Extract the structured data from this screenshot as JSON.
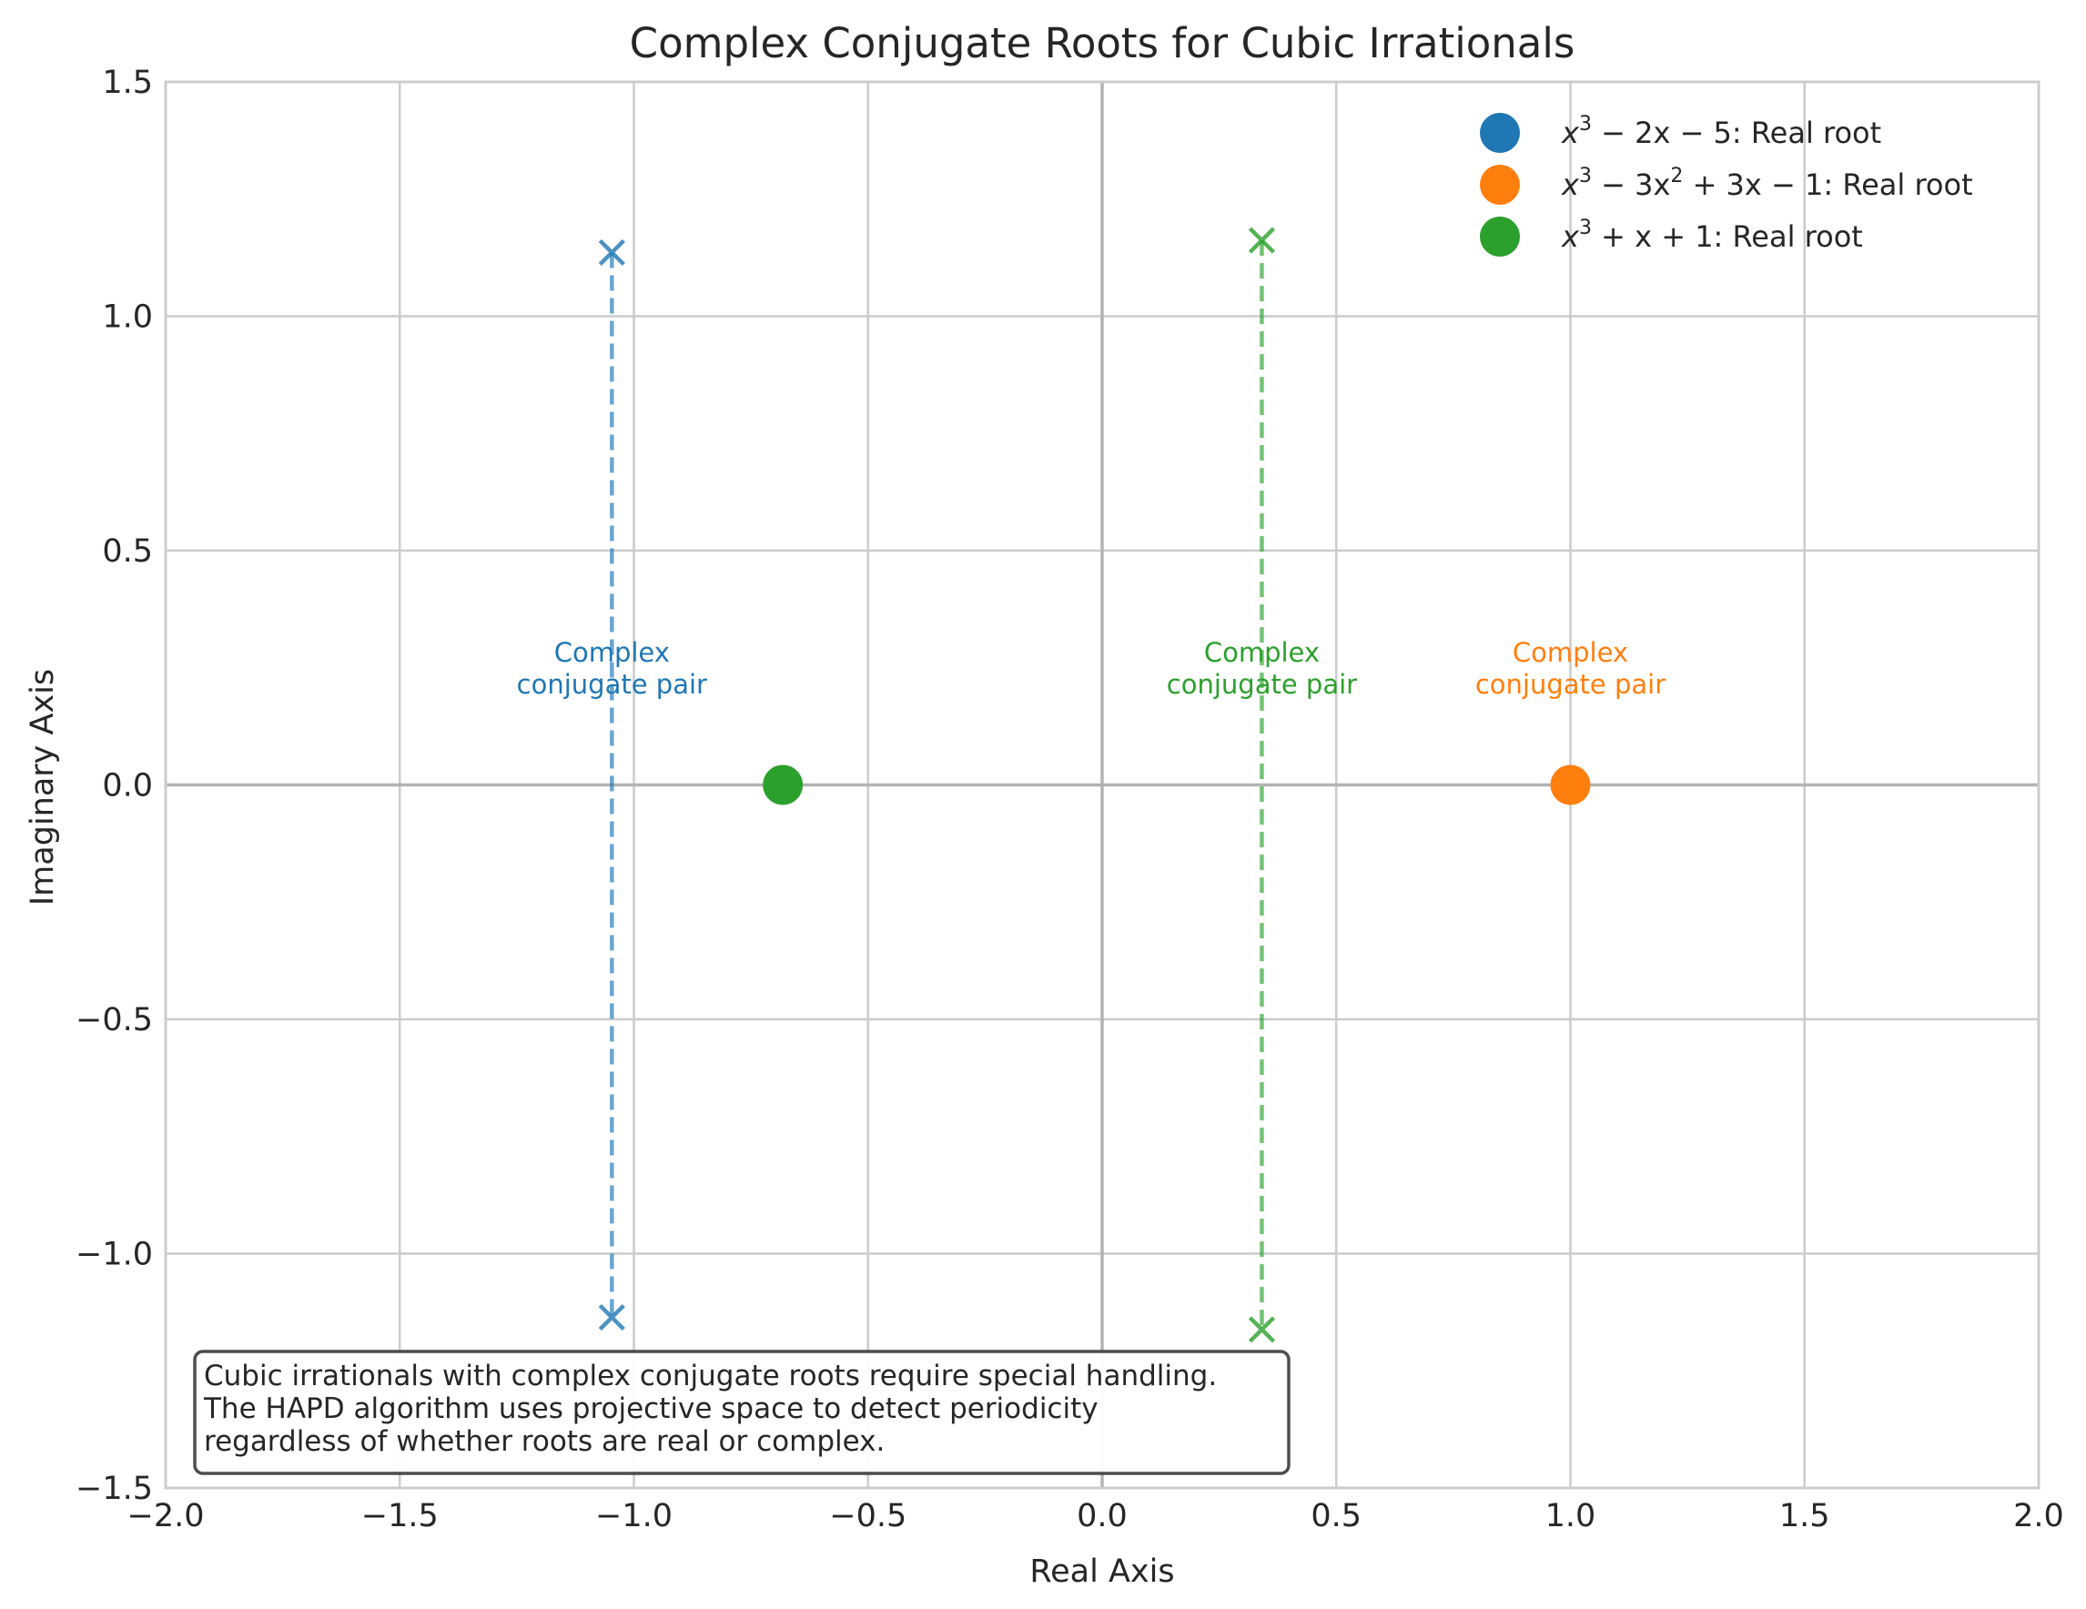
{
  "chart_data": {
    "type": "scatter",
    "title": "Complex Conjugate Roots for Cubic Irrationals",
    "xlabel": "Real Axis",
    "ylabel": "Imaginary Axis",
    "xlim": [
      -2.0,
      2.0
    ],
    "ylim": [
      -1.5,
      1.5
    ],
    "grid": true,
    "legend_position": "top-right",
    "x_ticks": [
      -2.0,
      -1.5,
      -1.0,
      -0.5,
      0.0,
      0.5,
      1.0,
      1.5,
      2.0
    ],
    "y_ticks": [
      -1.5,
      -1.0,
      -0.5,
      0.0,
      0.5,
      1.0,
      1.5
    ],
    "x_tick_labels": [
      "−2.0",
      "−1.5",
      "−1.0",
      "−0.5",
      "0.0",
      "0.5",
      "1.0",
      "1.5",
      "2.0"
    ],
    "y_tick_labels": [
      "−1.5",
      "−1.0",
      "−0.5",
      "0.0",
      "0.5",
      "1.0",
      "1.5"
    ],
    "series": [
      {
        "legend_base": "x",
        "legend_exp": "3",
        "legend_rest": " − 2x − 5: Real root",
        "color": "#1f77b4",
        "real_root": null,
        "complex_pair": {
          "re": -1.047,
          "im": 1.136
        },
        "annotation_line1": "Complex",
        "annotation_line2": "conjugate pair"
      },
      {
        "legend_base": "x",
        "legend_exp": "3",
        "legend_rest_a": " − 3x",
        "legend_exp2": "2",
        "legend_rest_b": " + 3x − 1: Real root",
        "color": "#ff7f0e",
        "real_root": {
          "re": 1.0,
          "im": 0.0
        },
        "complex_pair": null,
        "annotation_line1": "Complex",
        "annotation_line2": "conjugate pair"
      },
      {
        "legend_base": "x",
        "legend_exp": "3",
        "legend_rest": " + x + 1: Real root",
        "color": "#2ca02c",
        "real_root": {
          "re": -0.682,
          "im": 0.0
        },
        "complex_pair": {
          "re": 0.341,
          "im": 1.162
        },
        "annotation_line1": "Complex",
        "annotation_line2": "conjugate pair"
      }
    ],
    "note": [
      "Cubic irrationals with complex conjugate roots require special handling.",
      "The HAPD algorithm uses projective space to detect periodicity",
      "regardless of whether roots are real or complex."
    ]
  }
}
